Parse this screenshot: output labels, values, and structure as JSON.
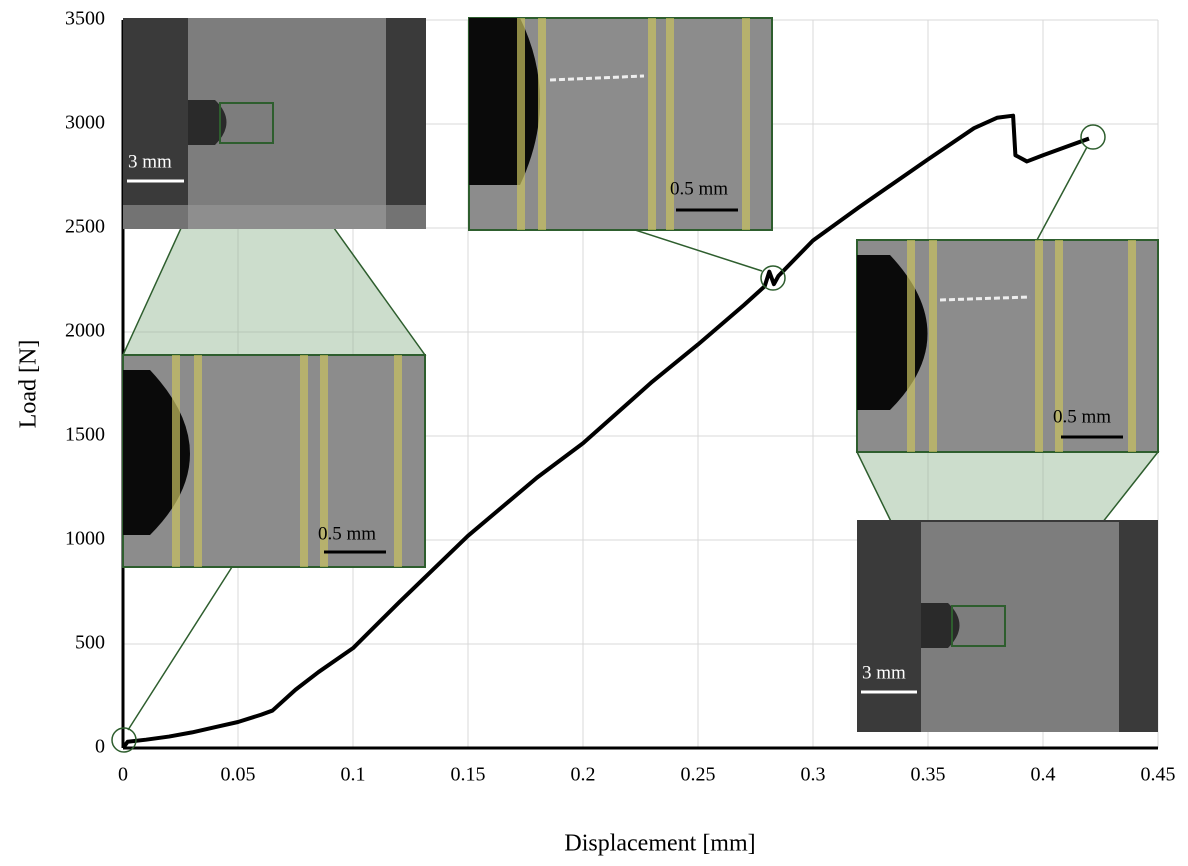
{
  "chart_data": {
    "type": "line",
    "x_label": "Displacement [mm]",
    "y_label": "Load [N]",
    "x": [
      0,
      0.002,
      0.01,
      0.02,
      0.03,
      0.04,
      0.05,
      0.06,
      0.065,
      0.075,
      0.085,
      0.1,
      0.12,
      0.15,
      0.18,
      0.2,
      0.23,
      0.25,
      0.27,
      0.279,
      0.281,
      0.283,
      0.285,
      0.3,
      0.32,
      0.35,
      0.37,
      0.38,
      0.387,
      0.388,
      0.393,
      0.4,
      0.41,
      0.42
    ],
    "values": [
      0,
      30,
      40,
      55,
      75,
      100,
      125,
      160,
      180,
      280,
      365,
      480,
      700,
      1020,
      1300,
      1465,
      1760,
      1940,
      2130,
      2220,
      2290,
      2230,
      2270,
      2440,
      2600,
      2830,
      2980,
      3030,
      3040,
      2850,
      2820,
      2850,
      2890,
      2930
    ],
    "color": "#000000",
    "xlim": [
      0,
      0.45
    ],
    "xticks": [
      0,
      0.05,
      0.1,
      0.15,
      0.2,
      0.25,
      0.3,
      0.35,
      0.4,
      0.45
    ],
    "ylim": [
      0,
      3500
    ],
    "yticks": [
      0,
      500,
      1000,
      1500,
      2000,
      2500,
      3000,
      3500
    ],
    "grid": true,
    "annotations": [
      "3 mm",
      "0.5 mm",
      "0.5 mm",
      "0.5 mm",
      "3 mm"
    ]
  }
}
